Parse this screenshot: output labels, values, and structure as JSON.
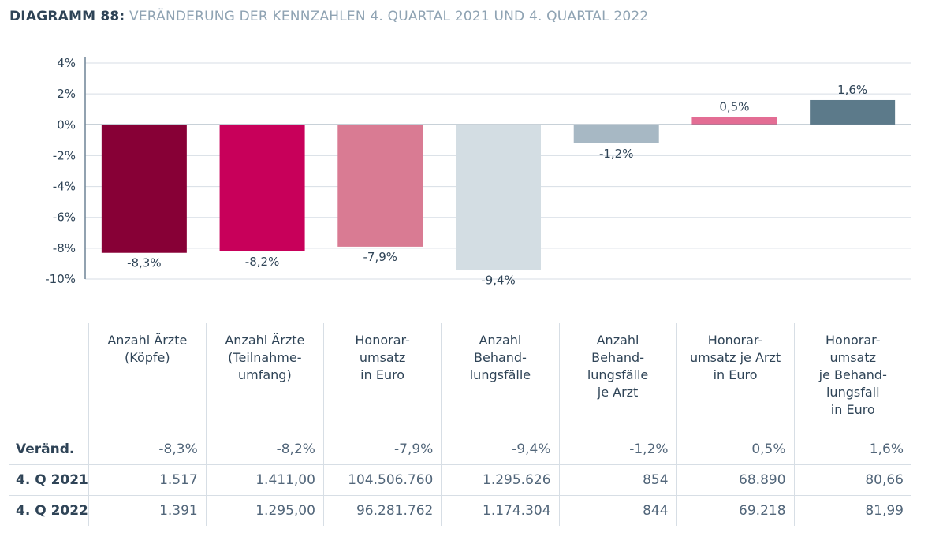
{
  "title": {
    "prefix": "DIAGRAMM 88:",
    "text": "VERÄNDERUNG DER KENNZAHLEN 4. QUARTAL 2021 UND 4. QUARTAL 2022"
  },
  "colors": {
    "bar_1": "#870036",
    "bar_2": "#c8005a",
    "bar_3": "#d97b93",
    "bar_4": "#d3dde3",
    "bar_5": "#a7b8c4",
    "bar_6": "#e36d94",
    "bar_7": "#5c7a8a",
    "grid": "#d7dee5",
    "axis": "#6e8496",
    "text": "#2f4457"
  },
  "chart_data": {
    "type": "bar",
    "categories": [
      "Anzahl Ärzte (Köpfe)",
      "Anzahl Ärzte (Teilnahmeumfang)",
      "Honorarumsatz in Euro",
      "Anzahl Behandlungsfälle",
      "Anzahl Behandlungsfälle je Arzt",
      "Honorarumsatz je Arzt in Euro",
      "Honorarumsatz je Behandlungsfall in Euro"
    ],
    "values": [
      -8.3,
      -8.2,
      -7.9,
      -9.4,
      -1.2,
      0.5,
      1.6
    ],
    "value_labels": [
      "-8,3%",
      "-8,2%",
      "-7,9%",
      "-9,4%",
      "-1,2%",
      "0,5%",
      "1,6%"
    ],
    "ylim": [
      -10,
      4
    ],
    "y_ticks": [
      4,
      2,
      0,
      -2,
      -4,
      -6,
      -8,
      -10
    ],
    "y_tick_labels": [
      "4%",
      "2%",
      "0%",
      "-2%",
      "-4%",
      "-6%",
      "-8%",
      "-10%"
    ],
    "grid": true,
    "title": "VERÄNDERUNG DER KENNZAHLEN 4. QUARTAL 2021 UND 4. QUARTAL 2022",
    "xlabel": "",
    "ylabel": ""
  },
  "table": {
    "headers": [
      [
        "Anzahl Ärzte",
        "(Köpfe)"
      ],
      [
        "Anzahl Ärzte",
        "(Teilnahme-",
        "umfang)"
      ],
      [
        "Honorar-",
        "umsatz",
        "in Euro"
      ],
      [
        "Anzahl",
        "Behand-",
        "lungsfälle"
      ],
      [
        "Anzahl",
        "Behand-",
        "lungsfälle",
        "je Arzt"
      ],
      [
        "Honorar-",
        "umsatz je Arzt",
        "in Euro"
      ],
      [
        "Honorar-",
        "umsatz",
        "je Behand-",
        "lungsfall",
        "in Euro"
      ]
    ],
    "rows": [
      {
        "label": "Veränd.",
        "cells": [
          "-8,3%",
          "-8,2%",
          "-7,9%",
          "-9,4%",
          "-1,2%",
          "0,5%",
          "1,6%"
        ]
      },
      {
        "label": "4. Q 2021",
        "cells": [
          "1.517",
          "1.411,00",
          "104.506.760",
          "1.295.626",
          "854",
          "68.890",
          "80,66"
        ]
      },
      {
        "label": "4. Q 2022",
        "cells": [
          "1.391",
          "1.295,00",
          "96.281.762",
          "1.174.304",
          "844",
          "69.218",
          "81,99"
        ]
      }
    ]
  }
}
